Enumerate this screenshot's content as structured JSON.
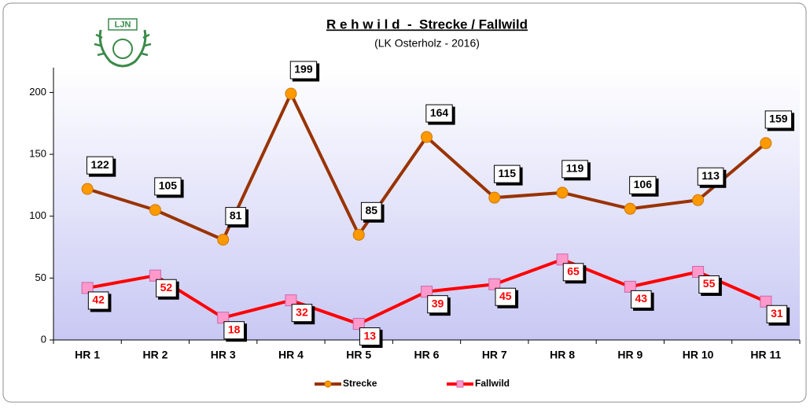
{
  "chart_data": {
    "type": "line",
    "title": "R e h w i l d  -  Strecke / Fallwild",
    "subtitle": "(LK Osterholz - 2016)",
    "logo_text": "LJN",
    "categories": [
      "HR 1",
      "HR 2",
      "HR 3",
      "HR 4",
      "HR 5",
      "HR 6",
      "HR 7",
      "HR 8",
      "HR 9",
      "HR 10",
      "HR 11"
    ],
    "series": [
      {
        "name": "Strecke",
        "color": "#993300",
        "marker_color": "#ff9900",
        "marker": "circle",
        "label_color": "#000000",
        "values": [
          122,
          105,
          81,
          199,
          85,
          164,
          115,
          119,
          106,
          113,
          159
        ]
      },
      {
        "name": "Fallwild",
        "color": "#ff0000",
        "marker_color": "#ff99cc",
        "marker": "square",
        "label_color": "#ff0000",
        "values": [
          42,
          52,
          18,
          32,
          13,
          39,
          45,
          65,
          43,
          55,
          31
        ]
      }
    ],
    "ylim": [
      0,
      220
    ],
    "yticks": [
      0,
      50,
      100,
      150,
      200
    ],
    "legend": "bottom"
  }
}
